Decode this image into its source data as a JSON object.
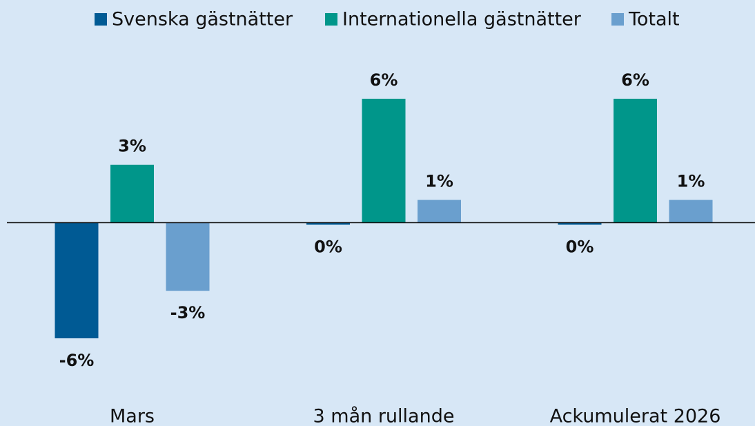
{
  "chart_data": {
    "type": "bar",
    "categories": [
      "Mars",
      "3 mån rullande",
      "Ackumulerat 2026"
    ],
    "series": [
      {
        "name": "Svenska gästnätter",
        "color": "#005a94",
        "values": [
          -5.6,
          -0.1,
          -0.1
        ],
        "value_labels": [
          "-6%",
          "0%",
          "0%"
        ]
      },
      {
        "name": "Internationella gästnätter",
        "color": "#00968a",
        "values": [
          2.8,
          6.0,
          6.0
        ],
        "value_labels": [
          "3%",
          "6%",
          "6%"
        ]
      },
      {
        "name": "Totalt",
        "color": "#6a9fce",
        "values": [
          -3.3,
          1.1,
          1.1
        ],
        "value_labels": [
          "-3%",
          "1%",
          "1%"
        ]
      }
    ],
    "legend": "top"
  }
}
